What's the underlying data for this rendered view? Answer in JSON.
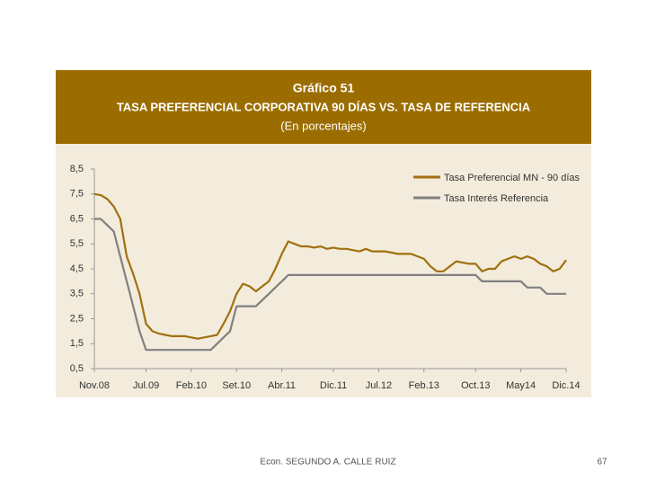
{
  "chart_data": {
    "type": "line",
    "title": "Gráfico 51",
    "subtitle": "TASA PREFERENCIAL CORPORATIVA 90 DÍAS VS. TASA DE REFERENCIA",
    "units_note": "(En porcentajes)",
    "x": [
      "2008-11",
      "2008-12",
      "2009-01",
      "2009-02",
      "2009-03",
      "2009-04",
      "2009-05",
      "2009-06",
      "2009-07",
      "2009-08",
      "2009-09",
      "2009-10",
      "2009-11",
      "2009-12",
      "2010-01",
      "2010-02",
      "2010-03",
      "2010-04",
      "2010-05",
      "2010-06",
      "2010-07",
      "2010-08",
      "2010-09",
      "2010-10",
      "2010-11",
      "2010-12",
      "2011-01",
      "2011-02",
      "2011-03",
      "2011-04",
      "2011-05",
      "2011-06",
      "2011-07",
      "2011-08",
      "2011-09",
      "2011-10",
      "2011-11",
      "2011-12",
      "2012-01",
      "2012-02",
      "2012-03",
      "2012-04",
      "2012-05",
      "2012-06",
      "2012-07",
      "2012-08",
      "2012-09",
      "2012-10",
      "2012-11",
      "2012-12",
      "2013-01",
      "2013-02",
      "2013-03",
      "2013-04",
      "2013-05",
      "2013-06",
      "2013-07",
      "2013-08",
      "2013-09",
      "2013-10",
      "2013-11",
      "2013-12",
      "2014-01",
      "2014-02",
      "2014-03",
      "2014-04",
      "2014-05",
      "2014-06",
      "2014-07",
      "2014-08",
      "2014-09",
      "2014-10",
      "2014-11",
      "2014-12"
    ],
    "series": [
      {
        "name": "Tasa Preferencial MN - 90 días",
        "color": "#a0700f",
        "values": [
          7.5,
          7.45,
          7.3,
          7.0,
          6.5,
          5.0,
          4.3,
          3.5,
          2.3,
          2.0,
          1.9,
          1.85,
          1.8,
          1.8,
          1.8,
          1.75,
          1.7,
          1.75,
          1.8,
          1.85,
          2.3,
          2.8,
          3.5,
          3.9,
          3.8,
          3.6,
          3.8,
          4.0,
          4.5,
          5.1,
          5.6,
          5.5,
          5.4,
          5.4,
          5.35,
          5.4,
          5.3,
          5.35,
          5.3,
          5.3,
          5.25,
          5.2,
          5.3,
          5.2,
          5.2,
          5.2,
          5.15,
          5.1,
          5.1,
          5.1,
          5.0,
          4.9,
          4.6,
          4.4,
          4.4,
          4.6,
          4.8,
          4.75,
          4.7,
          4.7,
          4.4,
          4.5,
          4.5,
          4.8,
          4.9,
          5.0,
          4.9,
          5.0,
          4.9,
          4.7,
          4.6,
          4.4,
          4.5,
          4.85
        ]
      },
      {
        "name": "Tasa Interés Referencia",
        "color": "#808080",
        "values": [
          6.5,
          6.5,
          6.25,
          6.0,
          5.0,
          4.0,
          3.0,
          2.0,
          1.25,
          1.25,
          1.25,
          1.25,
          1.25,
          1.25,
          1.25,
          1.25,
          1.25,
          1.25,
          1.25,
          1.5,
          1.75,
          2.0,
          3.0,
          3.0,
          3.0,
          3.0,
          3.25,
          3.5,
          3.75,
          4.0,
          4.25,
          4.25,
          4.25,
          4.25,
          4.25,
          4.25,
          4.25,
          4.25,
          4.25,
          4.25,
          4.25,
          4.25,
          4.25,
          4.25,
          4.25,
          4.25,
          4.25,
          4.25,
          4.25,
          4.25,
          4.25,
          4.25,
          4.25,
          4.25,
          4.25,
          4.25,
          4.25,
          4.25,
          4.25,
          4.25,
          4.0,
          4.0,
          4.0,
          4.0,
          4.0,
          4.0,
          4.0,
          3.75,
          3.75,
          3.75,
          3.5,
          3.5,
          3.5,
          3.5
        ]
      }
    ],
    "ylim": [
      0.5,
      8.5
    ],
    "yticks": [
      {
        "value": 0.5,
        "label": "0,5"
      },
      {
        "value": 1.5,
        "label": "1,5"
      },
      {
        "value": 2.5,
        "label": "2,5"
      },
      {
        "value": 3.5,
        "label": "3,5"
      },
      {
        "value": 4.5,
        "label": "4,5"
      },
      {
        "value": 5.5,
        "label": "5,5"
      },
      {
        "value": 6.5,
        "label": "6,5"
      },
      {
        "value": 7.5,
        "label": "7,5"
      },
      {
        "value": 8.5,
        "label": "8,5"
      }
    ],
    "xticks": [
      {
        "value": "2008-11",
        "label": "Nov.08"
      },
      {
        "value": "2009-07",
        "label": "Jul.09"
      },
      {
        "value": "2010-02",
        "label": "Feb.10"
      },
      {
        "value": "2010-09",
        "label": "Set.10"
      },
      {
        "value": "2011-04",
        "label": "Abr.11"
      },
      {
        "value": "2011-12",
        "label": "Dic.11"
      },
      {
        "value": "2012-07",
        "label": "Jul.12"
      },
      {
        "value": "2013-02",
        "label": "Feb.13"
      },
      {
        "value": "2013-10",
        "label": "Oct.13"
      },
      {
        "value": "2014-05",
        "label": "May14"
      },
      {
        "value": "2014-12",
        "label": "Dic.14"
      }
    ],
    "legend": "upper right"
  },
  "footer": {
    "author": "Econ. SEGUNDO A. CALLE RUIZ",
    "page": "67"
  }
}
